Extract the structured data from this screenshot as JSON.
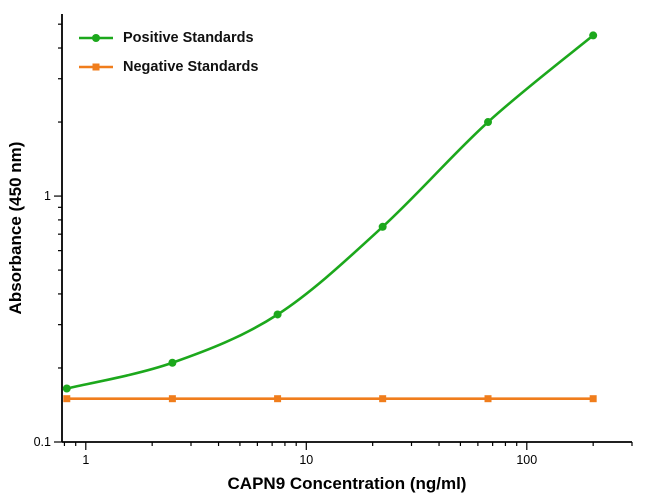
{
  "chart_data": {
    "type": "line",
    "title": "",
    "xlabel": "CAPN9 Concentration (ng/ml)",
    "ylabel": "Absorbance (450 nm)",
    "x_scale": "log",
    "y_scale": "log",
    "xlim": [
      0.78,
      300
    ],
    "ylim": [
      0.1,
      5.5
    ],
    "x_ticks": [
      1,
      10,
      100
    ],
    "y_ticks": [
      0.1,
      1
    ],
    "grid": false,
    "legend_position": "top-left",
    "axis_color": "#000000",
    "series": [
      {
        "name": "Positive Standards",
        "color": "#1ca81c",
        "marker": "circle",
        "x": [
          0.82,
          2.47,
          7.41,
          22.2,
          66.7,
          200
        ],
        "y": [
          0.165,
          0.21,
          0.33,
          0.75,
          2.0,
          4.5
        ]
      },
      {
        "name": "Negative Standards",
        "color": "#f07d1c",
        "marker": "square",
        "x": [
          0.82,
          2.47,
          7.41,
          22.2,
          66.7,
          200
        ],
        "y": [
          0.15,
          0.15,
          0.15,
          0.15,
          0.15,
          0.15
        ]
      }
    ]
  }
}
